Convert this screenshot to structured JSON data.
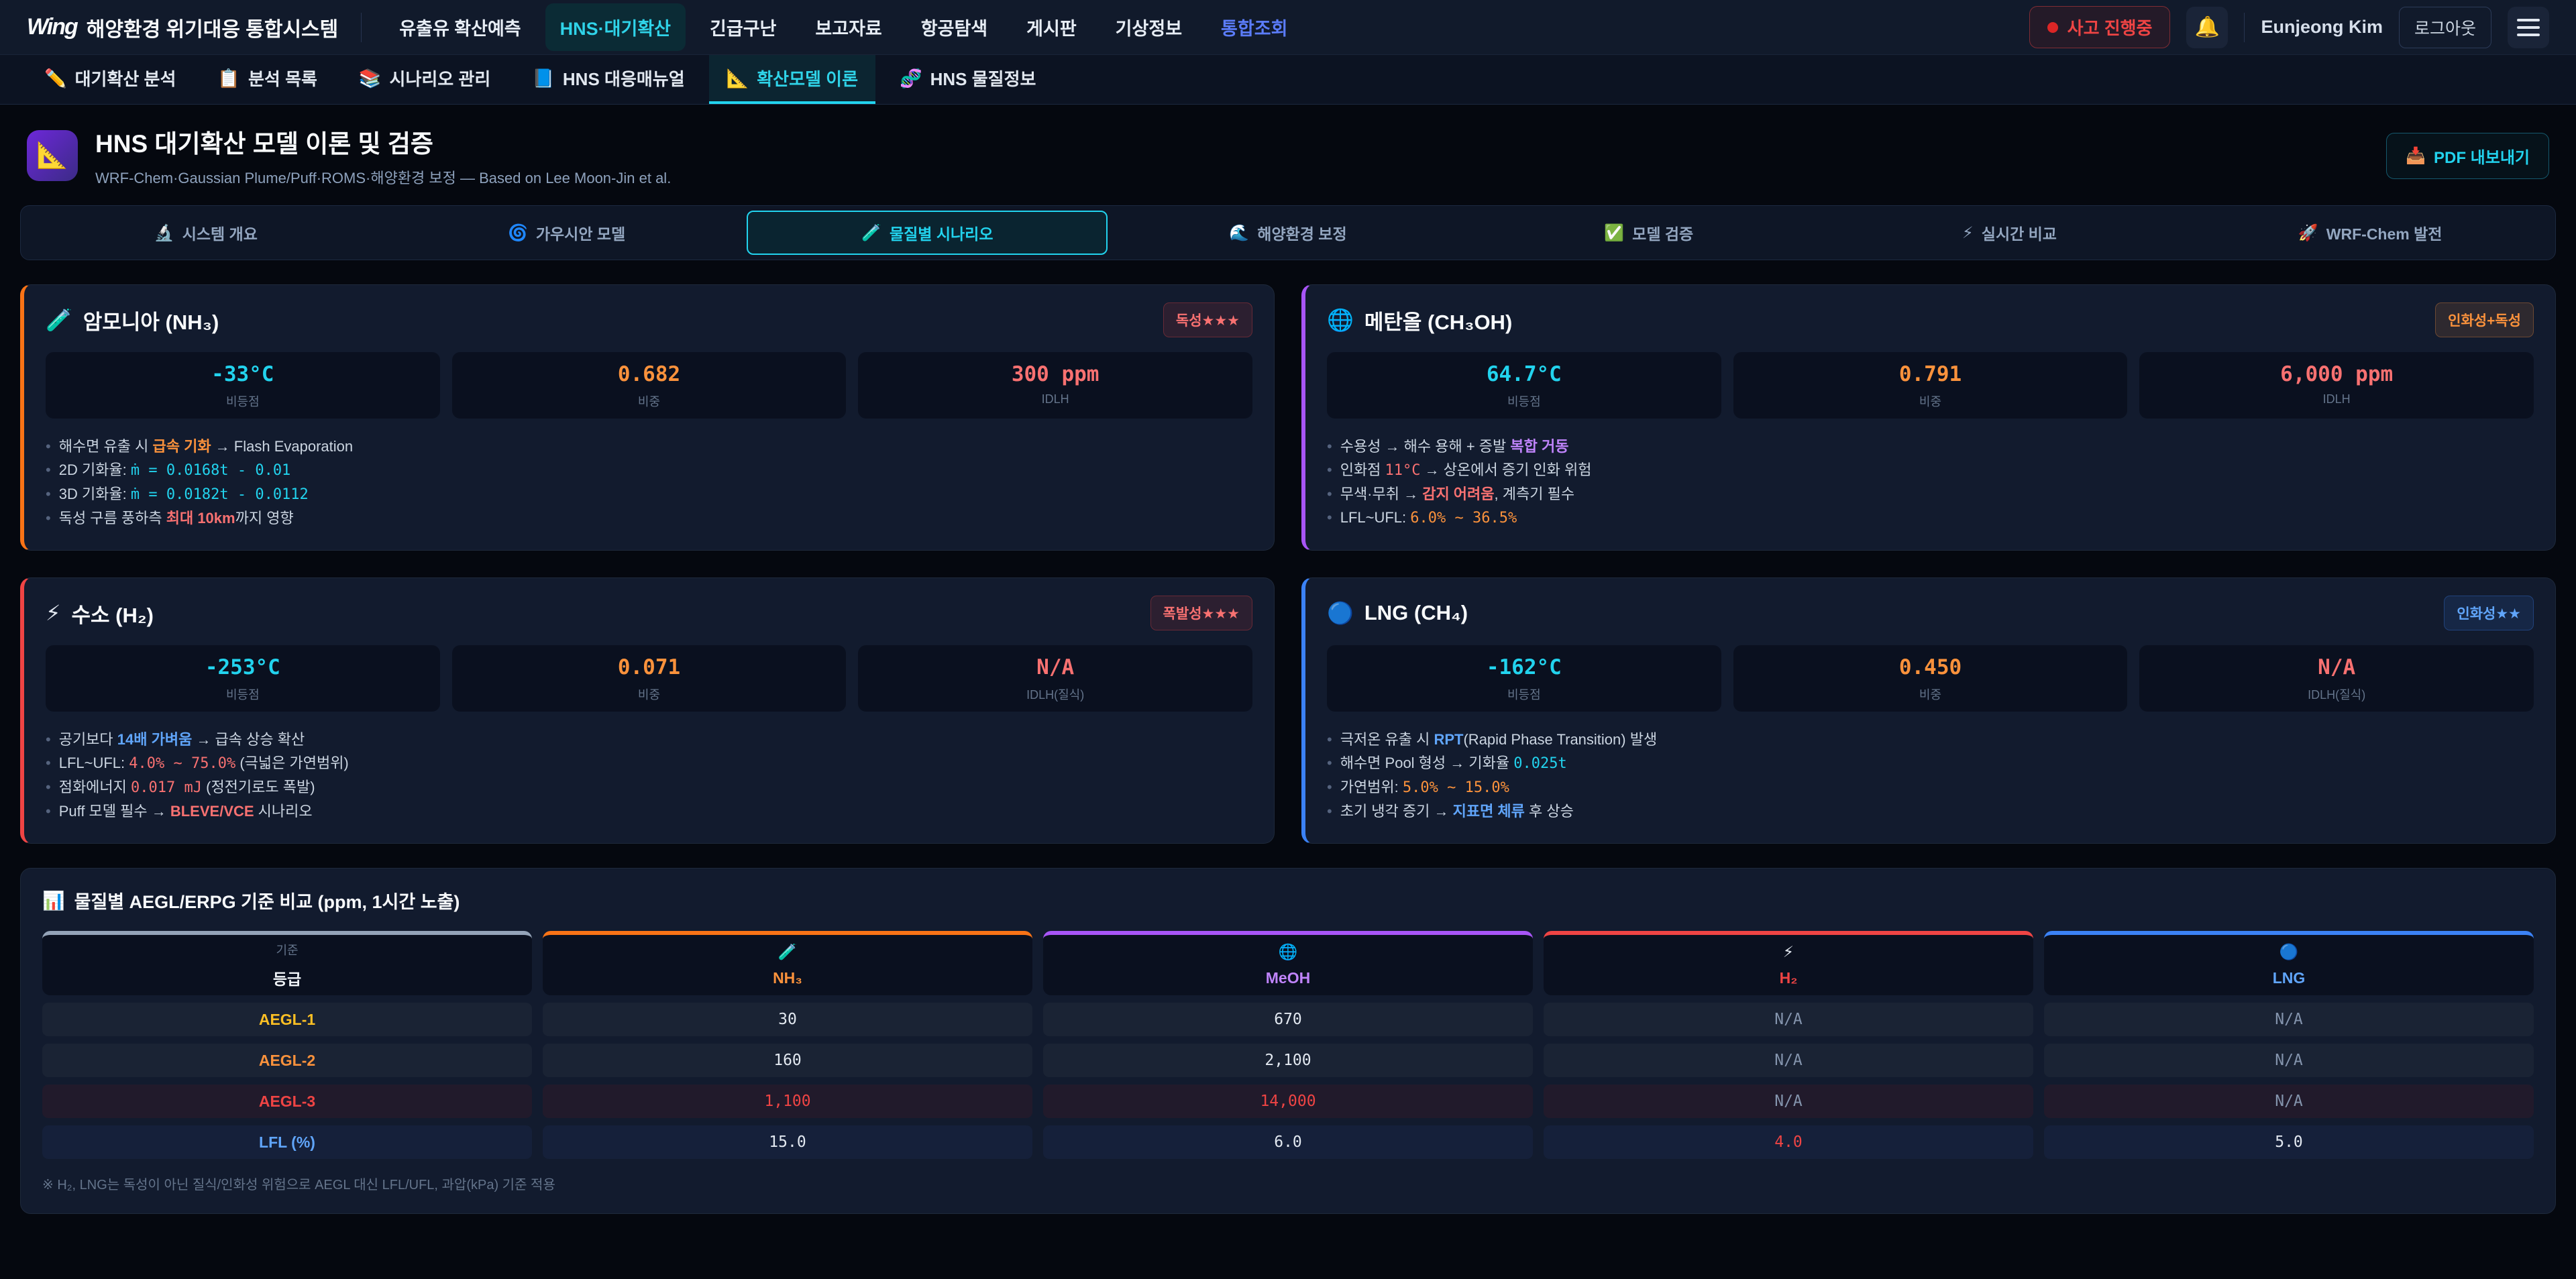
{
  "app": {
    "logo": "Wing",
    "title": "해양환경 위기대응 통합시스템",
    "nav": [
      {
        "label": "유출유 확산예측",
        "active": false
      },
      {
        "label": "HNS·대기확산",
        "active": true
      },
      {
        "label": "긴급구난",
        "active": false
      },
      {
        "label": "보고자료",
        "active": false
      },
      {
        "label": "항공탐색",
        "active": false
      },
      {
        "label": "게시판",
        "active": false
      },
      {
        "label": "기상정보",
        "active": false
      },
      {
        "label": "통합조회",
        "active": false,
        "accent": true
      }
    ],
    "incident_badge": "사고 진행중",
    "bell_icon": "🔔",
    "user_name": "Eunjeong Kim",
    "logout_label": "로그아웃"
  },
  "subnav": [
    {
      "icon": "✏️",
      "label": "대기확산 분석",
      "active": false
    },
    {
      "icon": "📋",
      "label": "분석 목록",
      "active": false
    },
    {
      "icon": "📚",
      "label": "시나리오 관리",
      "active": false
    },
    {
      "icon": "📘",
      "label": "HNS 대응매뉴얼",
      "active": false
    },
    {
      "icon": "📐",
      "label": "확산모델 이론",
      "active": true
    },
    {
      "icon": "🧬",
      "label": "HNS 물질정보",
      "active": false
    }
  ],
  "header": {
    "icon": "📐",
    "title": "HNS 대기확산 모델 이론 및 검증",
    "subtitle": "WRF-Chem·Gaussian Plume/Puff·ROMS·해양환경 보정 — Based on Lee Moon-Jin et al.",
    "pdf_icon": "📥",
    "pdf_label": "PDF 내보내기"
  },
  "section_tabs": [
    {
      "icon": "🔬",
      "label": "시스템 개요",
      "active": false
    },
    {
      "icon": "🌀",
      "label": "가우시안 모델",
      "active": false
    },
    {
      "icon": "🧪",
      "label": "물질별 시나리오",
      "active": true
    },
    {
      "icon": "🌊",
      "label": "해양환경 보정",
      "active": false
    },
    {
      "icon": "✅",
      "label": "모델 검증",
      "active": false
    },
    {
      "icon": "⚡",
      "label": "실시간 비교",
      "active": false
    },
    {
      "icon": "🚀",
      "label": "WRF-Chem 발전",
      "active": false
    }
  ],
  "substances": [
    {
      "icon": "🧪",
      "name": "암모니아 (NH₃)",
      "badge": "독성★★★",
      "badge_style": "badge-red",
      "accent": "#f97316",
      "stats": [
        {
          "value": "-33°C",
          "label": "비등점",
          "color": "#22d3ee"
        },
        {
          "value": "0.682",
          "label": "비중",
          "color": "#fb923c"
        },
        {
          "value": "300 ppm",
          "label": "IDLH",
          "color": "#f87171"
        }
      ],
      "bullets": [
        [
          {
            "t": "해수면 유출 시 "
          },
          {
            "t": "급속 기화",
            "s": "hl-orange"
          },
          {
            "t": " → Flash Evaporation"
          }
        ],
        [
          {
            "t": "2D 기화율: "
          },
          {
            "t": "ṁ = 0.0168t - 0.01",
            "s": "mono-cyan"
          }
        ],
        [
          {
            "t": "3D 기화율: "
          },
          {
            "t": "ṁ = 0.0182t - 0.0112",
            "s": "mono-cyan"
          }
        ],
        [
          {
            "t": "독성 구름 풍하측 "
          },
          {
            "t": "최대 10km",
            "s": "hl-red"
          },
          {
            "t": "까지 영향"
          }
        ]
      ]
    },
    {
      "icon": "🌐",
      "name": "메탄올 (CH₃OH)",
      "badge": "인화성+독성",
      "badge_style": "badge-orange",
      "accent": "#a855f7",
      "stats": [
        {
          "value": "64.7°C",
          "label": "비등점",
          "color": "#22d3ee"
        },
        {
          "value": "0.791",
          "label": "비중",
          "color": "#fb923c"
        },
        {
          "value": "6,000 ppm",
          "label": "IDLH",
          "color": "#f87171"
        }
      ],
      "bullets": [
        [
          {
            "t": "수용성 → 해수 용해 + 증발 "
          },
          {
            "t": "복합 거동",
            "s": "hl-purple"
          }
        ],
        [
          {
            "t": "인화점 "
          },
          {
            "t": "11°C",
            "s": "mono-red"
          },
          {
            "t": " → 상온에서 증기 인화 위험"
          }
        ],
        [
          {
            "t": "무색·무취 → "
          },
          {
            "t": "감지 어려움",
            "s": "hl-red"
          },
          {
            "t": ", 계측기 필수"
          }
        ],
        [
          {
            "t": "LFL~UFL: "
          },
          {
            "t": "6.0% ~ 36.5%",
            "s": "mono-orange"
          }
        ]
      ]
    },
    {
      "icon": "⚡",
      "name": "수소 (H₂)",
      "badge": "폭발성★★★",
      "badge_style": "badge-red",
      "accent": "#ef4444",
      "stats": [
        {
          "value": "-253°C",
          "label": "비등점",
          "color": "#22d3ee"
        },
        {
          "value": "0.071",
          "label": "비중",
          "color": "#fb923c"
        },
        {
          "value": "N/A",
          "label": "IDLH(질식)",
          "color": "#f87171"
        }
      ],
      "bullets": [
        [
          {
            "t": "공기보다 "
          },
          {
            "t": "14배 가벼움",
            "s": "hl-blue"
          },
          {
            "t": " → 급속 상승 확산"
          }
        ],
        [
          {
            "t": "LFL~UFL: "
          },
          {
            "t": "4.0% ~ 75.0%",
            "s": "mono-red"
          },
          {
            "t": " (극넓은 가연범위)"
          }
        ],
        [
          {
            "t": "점화에너지 "
          },
          {
            "t": "0.017 mJ",
            "s": "mono-red"
          },
          {
            "t": " (정전기로도 폭발)"
          }
        ],
        [
          {
            "t": "Puff 모델 필수 → "
          },
          {
            "t": "BLEVE/VCE",
            "s": "hl-red"
          },
          {
            "t": " 시나리오"
          }
        ]
      ]
    },
    {
      "icon": "🔵",
      "name": "LNG (CH₄)",
      "badge": "인화성★★",
      "badge_style": "badge-blue",
      "accent": "#3b82f6",
      "stats": [
        {
          "value": "-162°C",
          "label": "비등점",
          "color": "#22d3ee"
        },
        {
          "value": "0.450",
          "label": "비중",
          "color": "#fb923c"
        },
        {
          "value": "N/A",
          "label": "IDLH(질식)",
          "color": "#f87171"
        }
      ],
      "bullets": [
        [
          {
            "t": "극저온 유출 시 "
          },
          {
            "t": "RPT",
            "s": "hl-blue"
          },
          {
            "t": "(Rapid Phase Transition) 발생"
          }
        ],
        [
          {
            "t": "해수면 Pool 형성 → 기화율 "
          },
          {
            "t": "0.025t",
            "s": "mono-cyan"
          }
        ],
        [
          {
            "t": "가연범위: "
          },
          {
            "t": "5.0% ~ 15.0%",
            "s": "mono-orange"
          }
        ],
        [
          {
            "t": "초기 냉각 증기 → "
          },
          {
            "t": "지표면 체류",
            "s": "hl-blue"
          },
          {
            "t": " 후 상승"
          }
        ]
      ]
    }
  ],
  "table": {
    "title_icon": "📊",
    "title": "물질별 AEGL/ERPG 기준 비교 (ppm, 1시간 노출)",
    "columns": [
      {
        "sub": "기준",
        "name": "등급",
        "top": "#94a3b8",
        "name_color": "#f1f5f9"
      },
      {
        "icon": "🧪",
        "name": "NH₃",
        "top": "#f97316",
        "name_color": "#fb923c"
      },
      {
        "icon": "🌐",
        "name": "MeOH",
        "top": "#a855f7",
        "name_color": "#c084fc"
      },
      {
        "icon": "⚡",
        "name": "H₂",
        "top": "#ef4444",
        "name_color": "#ef4444"
      },
      {
        "icon": "🔵",
        "name": "LNG",
        "top": "#3b82f6",
        "name_color": "#60a5fa"
      }
    ],
    "rows": [
      {
        "label": "AEGL-1",
        "label_color": "#fbbf24",
        "tint": "",
        "values": [
          {
            "v": "30",
            "c": "#e2e8f0"
          },
          {
            "v": "670",
            "c": "#e2e8f0"
          },
          {
            "v": "N/A",
            "c": "#8494ad"
          },
          {
            "v": "N/A",
            "c": "#8494ad"
          }
        ]
      },
      {
        "label": "AEGL-2",
        "label_color": "#fb923c",
        "tint": "",
        "values": [
          {
            "v": "160",
            "c": "#e2e8f0"
          },
          {
            "v": "2,100",
            "c": "#e2e8f0"
          },
          {
            "v": "N/A",
            "c": "#8494ad"
          },
          {
            "v": "N/A",
            "c": "#8494ad"
          }
        ]
      },
      {
        "label": "AEGL-3",
        "label_color": "#ef4444",
        "tint": "row-tint-red",
        "values": [
          {
            "v": "1,100",
            "c": "#ef4444"
          },
          {
            "v": "14,000",
            "c": "#ef4444"
          },
          {
            "v": "N/A",
            "c": "#8494ad"
          },
          {
            "v": "N/A",
            "c": "#8494ad"
          }
        ]
      },
      {
        "label": "LFL (%)",
        "label_color": "#60a5fa",
        "tint": "row-tint-blue",
        "values": [
          {
            "v": "15.0",
            "c": "#e2e8f0"
          },
          {
            "v": "6.0",
            "c": "#e2e8f0"
          },
          {
            "v": "4.0",
            "c": "#ef4444"
          },
          {
            "v": "5.0",
            "c": "#e2e8f0"
          }
        ]
      }
    ],
    "footnote": "※ H₂, LNG는 독성이 아닌 질식/인화성 위험으로 AEGL 대신 LFL/UFL, 과압(kPa) 기준 적용"
  }
}
